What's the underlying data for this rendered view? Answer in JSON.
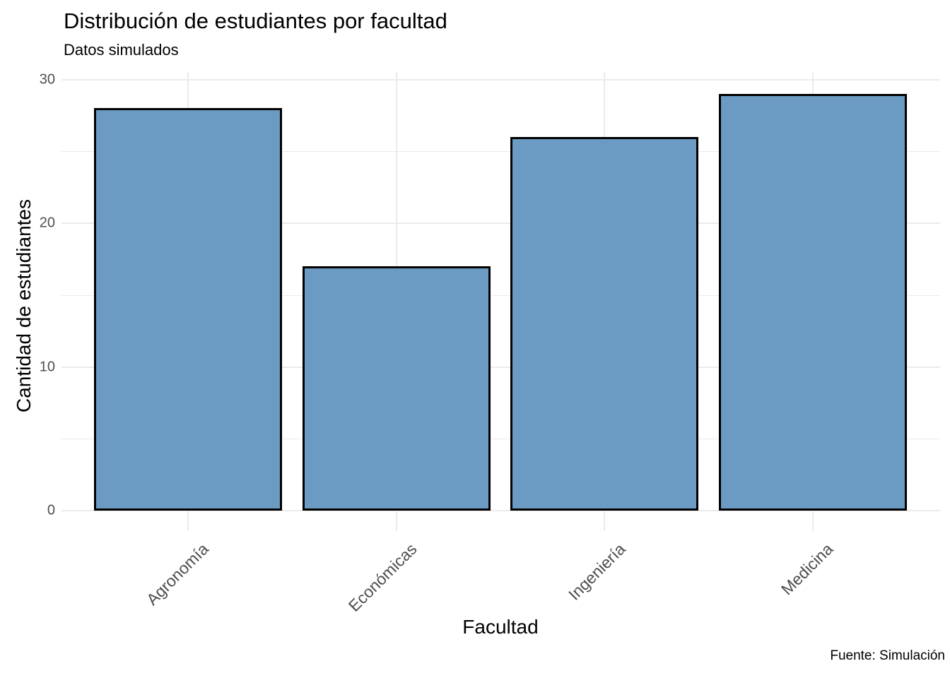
{
  "chart_data": {
    "type": "bar",
    "title": "Distribución de estudiantes por facultad",
    "subtitle": "Datos simulados",
    "caption": "Fuente: Simulación",
    "xlabel": "Facultad",
    "ylabel": "Cantidad de estudiantes",
    "categories": [
      "Agronomía",
      "Económicas",
      "Ingeniería",
      "Medicina"
    ],
    "values": [
      28,
      17,
      26,
      29
    ],
    "ylim": [
      0,
      30
    ],
    "yticks": [
      0,
      10,
      20,
      30
    ],
    "yticks_minor": [
      5,
      15,
      25
    ],
    "grid": "horizontal major+minor, vertical major at category centers",
    "legend": "none",
    "colors": {
      "bar_fill": "#6B9BC3",
      "bar_stroke": "#000000",
      "grid": "#EBEBEB",
      "axis_text": "#4D4D4D",
      "text": "#000000",
      "background": "#FFFFFF"
    }
  }
}
